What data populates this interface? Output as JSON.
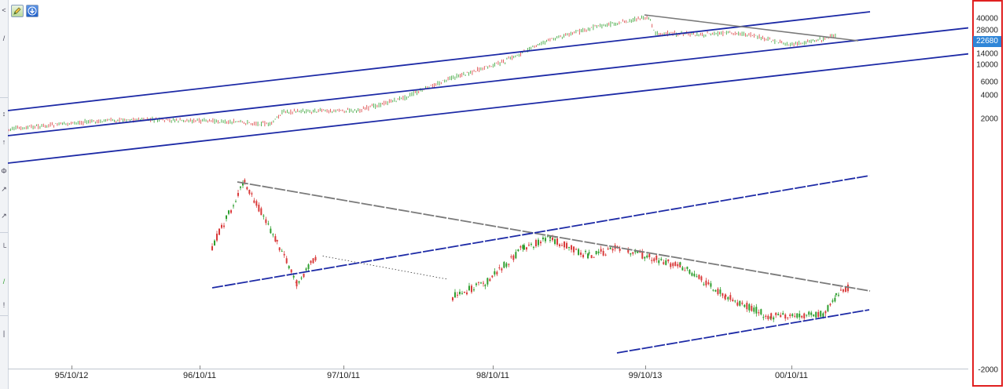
{
  "toolbar": {
    "tools": [
      {
        "name": "draw-tool",
        "icon": "pencil-icon"
      },
      {
        "name": "download-tool",
        "icon": "arrow-down-icon"
      }
    ],
    "left_glyphs": [
      "<",
      "/",
      "↕",
      "↑",
      "Φ",
      "↗",
      "↗",
      "└",
      "/",
      "!",
      "|"
    ]
  },
  "chart_data": {
    "type": "candlestick",
    "x_ticks": [
      "95/10/12",
      "96/10/11",
      "97/10/11",
      "98/10/11",
      "99/10/13",
      "00/10/11"
    ],
    "price_axis_ticks": [
      "40000",
      "28000",
      "20000",
      "14000",
      "10000",
      "6000",
      "4000",
      "2000",
      "-2000"
    ],
    "last_price": "22680",
    "scale": "log",
    "grid": false,
    "colors": {
      "up": "#2e9e2e",
      "down": "#d93a3a",
      "channel": "#1d2aa6",
      "trendline": "#7a7a7a",
      "badge": "#2f86d8"
    },
    "main_series": {
      "description_points": [
        [
          "95/05",
          1400
        ],
        [
          "95/10/12",
          1700
        ],
        [
          "96/03",
          1900
        ],
        [
          "96/10/11",
          1800
        ],
        [
          "97/03",
          1650
        ],
        [
          "97/04",
          2400
        ],
        [
          "97/10/11",
          2500
        ],
        [
          "98/02",
          3600
        ],
        [
          "98/06",
          6500
        ],
        [
          "98/10/11",
          10500
        ],
        [
          "99/02",
          20000
        ],
        [
          "99/06",
          30000
        ],
        [
          "99/10/13",
          40000
        ],
        [
          "99/11",
          25000
        ],
        [
          "00/03",
          24000
        ],
        [
          "00/06",
          25000
        ],
        [
          "00/10/11",
          17500
        ],
        [
          "01/02",
          22680
        ]
      ]
    },
    "secondary_series": {
      "segments": [
        {
          "trend": "spike-then-decline",
          "points": [
            [
              0.0,
              0.48
            ],
            [
              0.05,
              0.0
            ],
            [
              0.1,
              0.44
            ],
            [
              0.13,
              0.75
            ],
            [
              0.16,
              0.55
            ]
          ]
        },
        {
          "trend": "flat",
          "points": [
            [
              0.17,
              0.55
            ],
            [
              0.36,
              0.72
            ]
          ]
        },
        {
          "trend": "rally",
          "points": [
            [
              0.37,
              0.85
            ],
            [
              0.42,
              0.75
            ],
            [
              0.48,
              0.48
            ],
            [
              0.52,
              0.42
            ],
            [
              0.58,
              0.55
            ],
            [
              0.63,
              0.48
            ]
          ]
        },
        {
          "trend": "decline",
          "points": [
            [
              0.64,
              0.52
            ],
            [
              0.72,
              0.62
            ],
            [
              0.79,
              0.85
            ],
            [
              0.86,
              1.0
            ],
            [
              0.94,
              0.98
            ],
            [
              0.96,
              0.85
            ],
            [
              0.98,
              0.78
            ]
          ]
        }
      ]
    }
  }
}
